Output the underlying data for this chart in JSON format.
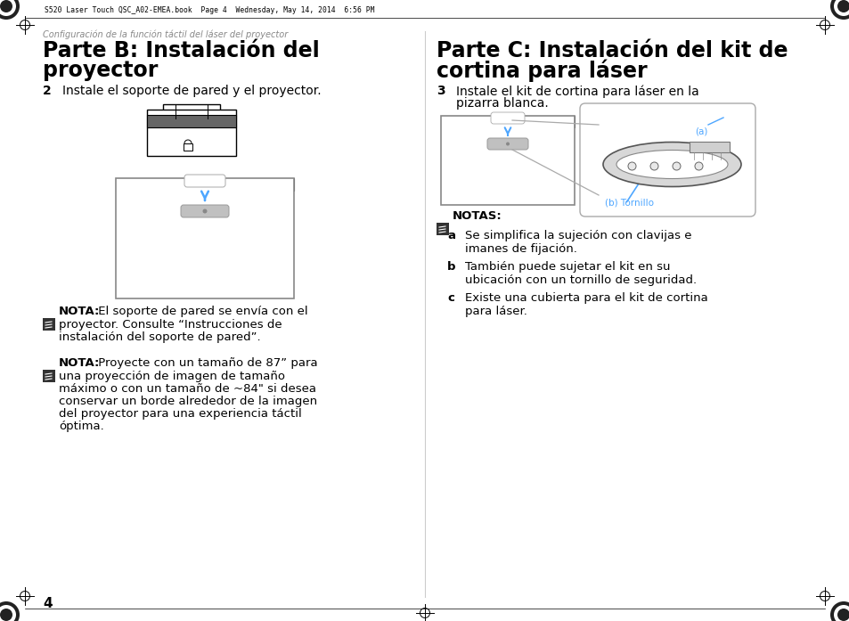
{
  "bg_color": "#ffffff",
  "top_bar_text": "S520 Laser Touch QSC_A02-EMEA.book  Page 4  Wednesday, May 14, 2014  6:56 PM",
  "header_text": "Configuración de la función táctil del láser del proyector",
  "page_number": "4",
  "left_title_line1": "Parte B: Instalación del",
  "left_title_line2": "proyector",
  "right_title_line1": "Parte C: Instalación del kit de",
  "right_title_line2": "cortina para láser",
  "step2_num": "2",
  "step2_text": "Instale el soporte de pared y el proyector.",
  "step3_num": "3",
  "step3_text_line1": "Instale el kit de cortina para láser en la",
  "step3_text_line2": "pizarra blanca.",
  "nota1_bold": "NOTA:",
  "nota1_rest": " El soporte de pared se envía con el",
  "nota1_line2": "proyector. Consulte “Instrucciones de",
  "nota1_line3": "instalación del soporte de pared”.",
  "nota2_bold": "NOTA:",
  "nota2_rest": " Proyecte con un tamaño de 87” para",
  "nota2_line2": "una proyección de imagen de tamaño",
  "nota2_line3": "máximo o con un tamaño de ~84\" si desea",
  "nota2_line4": "conservar un borde alrededor de la imagen",
  "nota2_line5": "del proyector para una experiencia táctil",
  "nota2_line6": "óptima.",
  "notas_bold": "NOTAS:",
  "nota_a_letter": "a",
  "nota_a_line1": "Se simplifica la sujeción con clavijas e",
  "nota_a_line2": "imanes de fijación.",
  "nota_b_letter": "b",
  "nota_b_line1": "También puede sujetar el kit en su",
  "nota_b_line2": "ubicación con un tornillo de seguridad.",
  "nota_c_letter": "c",
  "nota_c_line1": "Existe una cubierta para el kit de cortina",
  "nota_c_line2": "para láser.",
  "label_a": "(a)",
  "label_b": "(b) Tornillo",
  "accent_color": "#4da6ff",
  "gray_dark": "#555555",
  "gray_med": "#888888",
  "gray_light": "#cccccc",
  "header_gray": "#888888",
  "icon_bg": "#333333",
  "divider_color": "#cccccc"
}
